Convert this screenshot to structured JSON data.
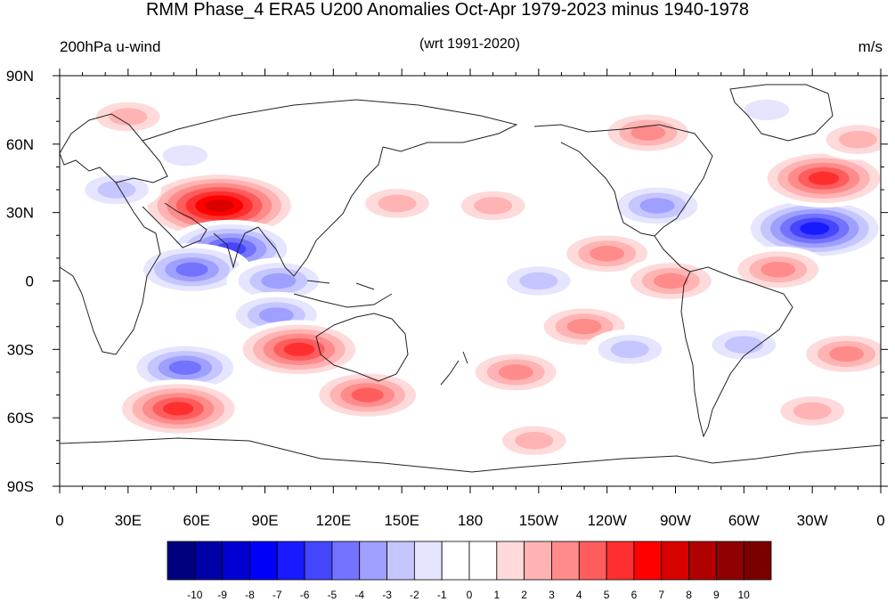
{
  "header": {
    "title": "RMM Phase_4 ERA5 U200 Anomalies Oct-Apr 1979-2023 minus 1940-1978",
    "left_string": "200hPa u-wind",
    "center_string": "(wrt 1991-2020)",
    "right_string": "m/s"
  },
  "colors": {
    "palette": [
      "#00007f",
      "#0000a8",
      "#0000d2",
      "#0000f8",
      "#1a1aff",
      "#4646ff",
      "#7373ff",
      "#9f9fff",
      "#c5c5ff",
      "#e5e5ff",
      "#ffffff",
      "#ffffff",
      "#ffdada",
      "#ffb3b3",
      "#ff8b8b",
      "#ff5d5d",
      "#ff2f2f",
      "#ff0000",
      "#d90000",
      "#b10000",
      "#8f0000",
      "#7a0000"
    ],
    "coast": "#222222"
  },
  "chart_data": {
    "type": "heatmap",
    "variable": "200hPa u-wind",
    "units": "m/s",
    "x_ticks": [
      "0",
      "30E",
      "60E",
      "90E",
      "120E",
      "150E",
      "180",
      "150W",
      "120W",
      "90W",
      "60W",
      "30W",
      "0"
    ],
    "x_tick_values": [
      0,
      30,
      60,
      90,
      120,
      150,
      180,
      210,
      240,
      270,
      300,
      330,
      360
    ],
    "y_ticks": [
      "90N",
      "60N",
      "30N",
      "0",
      "30S",
      "60S",
      "90S"
    ],
    "y_tick_values": [
      90,
      60,
      30,
      0,
      -30,
      -60,
      -90
    ],
    "xlim": [
      0,
      360
    ],
    "ylim": [
      -90,
      90
    ],
    "colorbar_labels": [
      "-10",
      "-9",
      "-8",
      "-7",
      "-6",
      "-5",
      "-4",
      "-3",
      "-2",
      "-1",
      "0",
      "1",
      "2",
      "3",
      "4",
      "5",
      "6",
      "7",
      "8",
      "9",
      "10"
    ],
    "colorbar_levels": [
      -10,
      -9,
      -8,
      -7,
      -6,
      -5,
      -4,
      -3,
      -2,
      -1,
      0,
      1,
      2,
      3,
      4,
      5,
      6,
      7,
      8,
      9,
      10
    ],
    "anomaly_centers": [
      {
        "lon": 70,
        "lat": 33,
        "value": 8
      },
      {
        "lon": 75,
        "lat": 14,
        "value": -6
      },
      {
        "lon": 58,
        "lat": 5,
        "value": -5
      },
      {
        "lon": 96,
        "lat": 0,
        "value": -4
      },
      {
        "lon": 95,
        "lat": -15,
        "value": -4
      },
      {
        "lon": 105,
        "lat": -30,
        "value": 6
      },
      {
        "lon": 55,
        "lat": -38,
        "value": -5
      },
      {
        "lon": 52,
        "lat": -56,
        "value": 6
      },
      {
        "lon": 135,
        "lat": -50,
        "value": 5
      },
      {
        "lon": 200,
        "lat": -40,
        "value": 4
      },
      {
        "lon": 208,
        "lat": -70,
        "value": 3
      },
      {
        "lon": 148,
        "lat": 34,
        "value": 3
      },
      {
        "lon": 190,
        "lat": 33,
        "value": 3
      },
      {
        "lon": 210,
        "lat": 0,
        "value": -3
      },
      {
        "lon": 230,
        "lat": -20,
        "value": 4
      },
      {
        "lon": 240,
        "lat": 12,
        "value": 4
      },
      {
        "lon": 262,
        "lat": 33,
        "value": -4
      },
      {
        "lon": 331,
        "lat": 23,
        "value": -7
      },
      {
        "lon": 335,
        "lat": 45,
        "value": 6
      },
      {
        "lon": 258,
        "lat": 65,
        "value": 4
      },
      {
        "lon": 315,
        "lat": 5,
        "value": 4
      },
      {
        "lon": 268,
        "lat": 0,
        "value": 4
      },
      {
        "lon": 250,
        "lat": -30,
        "value": -3
      },
      {
        "lon": 300,
        "lat": -28,
        "value": -3
      },
      {
        "lon": 345,
        "lat": -32,
        "value": 4
      },
      {
        "lon": 330,
        "lat": -57,
        "value": 3
      },
      {
        "lon": 30,
        "lat": 72,
        "value": 3
      },
      {
        "lon": 350,
        "lat": 62,
        "value": 3
      },
      {
        "lon": 55,
        "lat": 55,
        "value": -2
      },
      {
        "lon": 25,
        "lat": 40,
        "value": -3
      },
      {
        "lon": 310,
        "lat": 75,
        "value": -2
      }
    ]
  }
}
